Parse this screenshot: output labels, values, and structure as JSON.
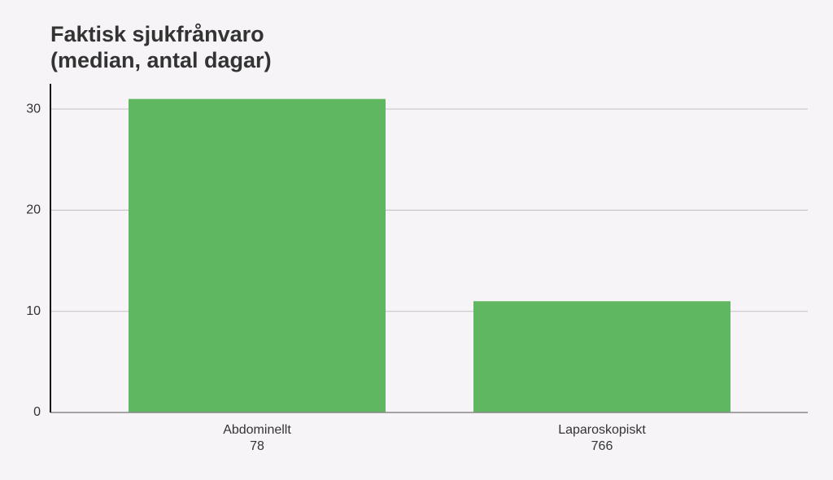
{
  "chart_data": {
    "type": "bar",
    "title": [
      "Faktisk sjukfrånvaro",
      "(median, antal dagar)"
    ],
    "categories": [
      "Abdominellt",
      "Laparoskopiskt"
    ],
    "category_counts": [
      78,
      766
    ],
    "values": [
      31,
      11
    ],
    "color": "#5fb762",
    "ylim": [
      0,
      32.5
    ],
    "yticks": [
      0,
      10,
      20,
      30
    ],
    "grid": true
  }
}
